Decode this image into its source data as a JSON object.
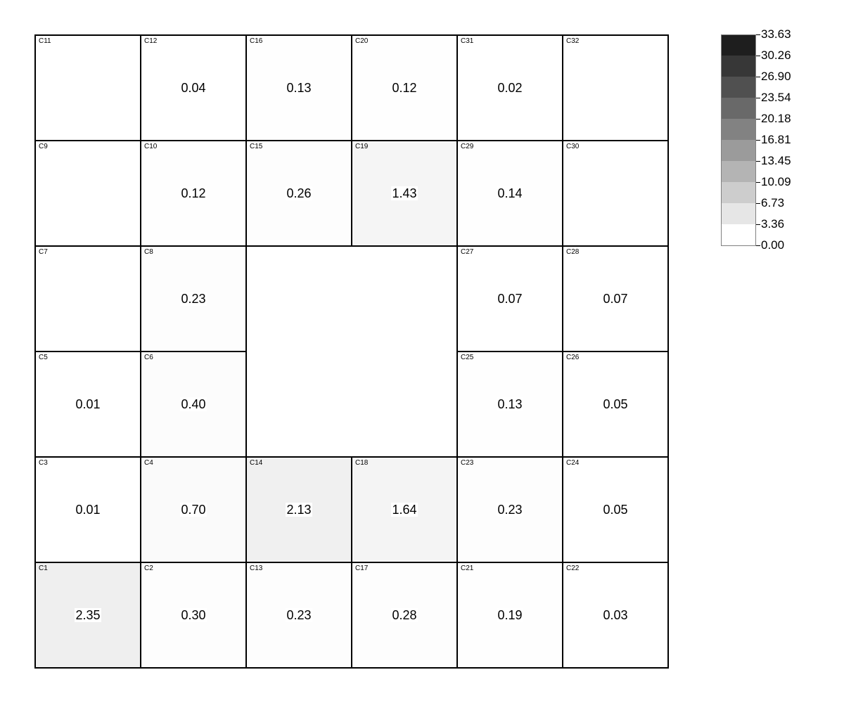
{
  "chart_data": {
    "type": "heatmap",
    "title": "",
    "value_format": "2 decimals",
    "legend": {
      "placement": "top-right",
      "levels": [
        "33.63",
        "30.26",
        "26.90",
        "23.54",
        "20.18",
        "16.81",
        "13.45",
        "10.09",
        "6.73",
        "3.36",
        "0.00"
      ],
      "min": 0,
      "max": 33.63
    },
    "grid_rows": 6,
    "grid_cols": 6,
    "cells": [
      {
        "id": "C11",
        "row": 0,
        "col": 0,
        "value": null
      },
      {
        "id": "C12",
        "row": 0,
        "col": 1,
        "value": 0.04
      },
      {
        "id": "C16",
        "row": 0,
        "col": 2,
        "value": 0.13
      },
      {
        "id": "C20",
        "row": 0,
        "col": 3,
        "value": 0.12
      },
      {
        "id": "C31",
        "row": 0,
        "col": 4,
        "value": 0.02
      },
      {
        "id": "C32",
        "row": 0,
        "col": 5,
        "value": null
      },
      {
        "id": "C9",
        "row": 1,
        "col": 0,
        "value": null
      },
      {
        "id": "C10",
        "row": 1,
        "col": 1,
        "value": 0.12
      },
      {
        "id": "C15",
        "row": 1,
        "col": 2,
        "value": 0.26
      },
      {
        "id": "C19",
        "row": 1,
        "col": 3,
        "value": 1.43
      },
      {
        "id": "C29",
        "row": 1,
        "col": 4,
        "value": 0.14
      },
      {
        "id": "C30",
        "row": 1,
        "col": 5,
        "value": null
      },
      {
        "id": "C7",
        "row": 2,
        "col": 0,
        "value": null
      },
      {
        "id": "C8",
        "row": 2,
        "col": 1,
        "value": 0.23
      },
      {
        "id": "C27",
        "row": 2,
        "col": 4,
        "value": 0.07
      },
      {
        "id": "C28",
        "row": 2,
        "col": 5,
        "value": 0.07
      },
      {
        "id": "C5",
        "row": 3,
        "col": 0,
        "value": 0.01
      },
      {
        "id": "C6",
        "row": 3,
        "col": 1,
        "value": 0.4
      },
      {
        "id": "C25",
        "row": 3,
        "col": 4,
        "value": 0.13
      },
      {
        "id": "C26",
        "row": 3,
        "col": 5,
        "value": 0.05
      },
      {
        "id": "C3",
        "row": 4,
        "col": 0,
        "value": 0.01
      },
      {
        "id": "C4",
        "row": 4,
        "col": 1,
        "value": 0.7
      },
      {
        "id": "C14",
        "row": 4,
        "col": 2,
        "value": 2.13
      },
      {
        "id": "C18",
        "row": 4,
        "col": 3,
        "value": 1.64
      },
      {
        "id": "C23",
        "row": 4,
        "col": 4,
        "value": 0.23
      },
      {
        "id": "C24",
        "row": 4,
        "col": 5,
        "value": 0.05
      },
      {
        "id": "C1",
        "row": 5,
        "col": 0,
        "value": 2.35
      },
      {
        "id": "C2",
        "row": 5,
        "col": 1,
        "value": 0.3
      },
      {
        "id": "C13",
        "row": 5,
        "col": 2,
        "value": 0.23
      },
      {
        "id": "C17",
        "row": 5,
        "col": 3,
        "value": 0.28
      },
      {
        "id": "C21",
        "row": 5,
        "col": 4,
        "value": 0.19
      },
      {
        "id": "C22",
        "row": 5,
        "col": 5,
        "value": 0.03
      }
    ]
  }
}
